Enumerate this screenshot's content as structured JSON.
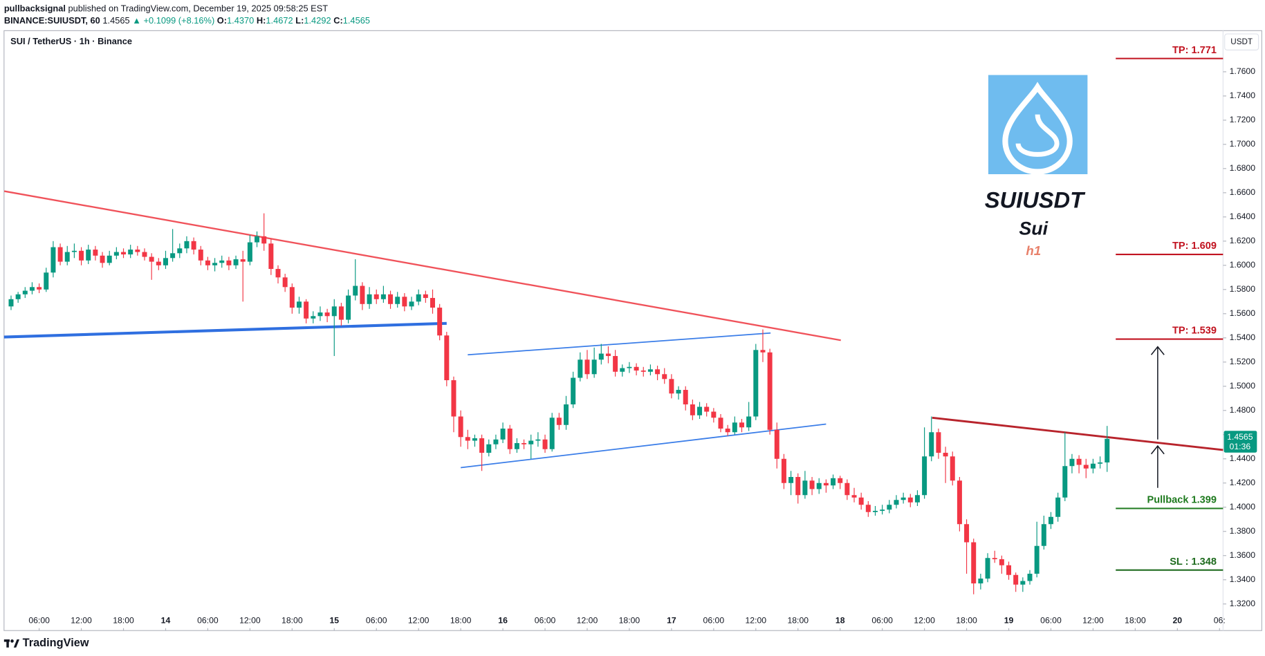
{
  "header": {
    "author": "pullbacksignal",
    "published": "published on TradingView.com, December 19, 2025 09:58:25 EST",
    "symbol": "BINANCE:SUIUSDT, 60",
    "last": "1.4565",
    "arrow": "▲",
    "change": "+0.1099 (+8.16%)",
    "o_label": "O:",
    "o": "1.4370",
    "h_label": "H:",
    "h": "1.4672",
    "l_label": "L:",
    "l": "1.4292",
    "c_label": "C:",
    "c": "1.4565"
  },
  "footer": {
    "brand": "TradingView"
  },
  "chart_data": {
    "type": "candlestick",
    "title": "SUI / TetherUS · 1h · Binance",
    "currency": "USDT",
    "up_color": "#089981",
    "down_color": "#f23645",
    "xlim": [
      1,
      174.5
    ],
    "ylim": [
      1.314,
      1.794
    ],
    "grid": false,
    "xticks": [
      {
        "value": 6,
        "label": "06:00"
      },
      {
        "value": 12,
        "label": "12:00"
      },
      {
        "value": 18,
        "label": "18:00"
      },
      {
        "value": 24,
        "label": "14"
      },
      {
        "value": 30,
        "label": "06:00"
      },
      {
        "value": 36,
        "label": "12:00"
      },
      {
        "value": 42,
        "label": "18:00"
      },
      {
        "value": 48,
        "label": "15"
      },
      {
        "value": 54,
        "label": "06:00"
      },
      {
        "value": 60,
        "label": "12:00"
      },
      {
        "value": 66,
        "label": "18:00"
      },
      {
        "value": 72,
        "label": "16"
      },
      {
        "value": 78,
        "label": "06:00"
      },
      {
        "value": 84,
        "label": "12:00"
      },
      {
        "value": 90,
        "label": "18:00"
      },
      {
        "value": 96,
        "label": "17"
      },
      {
        "value": 102,
        "label": "06:00"
      },
      {
        "value": 108,
        "label": "12:00"
      },
      {
        "value": 114,
        "label": "18:00"
      },
      {
        "value": 120,
        "label": "18"
      },
      {
        "value": 126,
        "label": "06:00"
      },
      {
        "value": 132,
        "label": "12:00"
      },
      {
        "value": 138,
        "label": "18:00"
      },
      {
        "value": 144,
        "label": "19"
      },
      {
        "value": 150,
        "label": "06:00"
      },
      {
        "value": 156,
        "label": "12:00"
      },
      {
        "value": 162,
        "label": "18:00"
      },
      {
        "value": 168,
        "label": "20"
      },
      {
        "value": 174,
        "label": "06:"
      }
    ],
    "yticks": [
      {
        "value": 1.32,
        "label": "1.3200"
      },
      {
        "value": 1.34,
        "label": "1.3400"
      },
      {
        "value": 1.36,
        "label": "1.3600"
      },
      {
        "value": 1.38,
        "label": "1.3800"
      },
      {
        "value": 1.4,
        "label": "1.4000"
      },
      {
        "value": 1.42,
        "label": "1.4200"
      },
      {
        "value": 1.44,
        "label": "1.4400"
      },
      {
        "value": 1.46,
        "label": "1.4600"
      },
      {
        "value": 1.48,
        "label": "1.4800"
      },
      {
        "value": 1.5,
        "label": "1.5000"
      },
      {
        "value": 1.52,
        "label": "1.5200"
      },
      {
        "value": 1.54,
        "label": "1.5400"
      },
      {
        "value": 1.56,
        "label": "1.5600"
      },
      {
        "value": 1.58,
        "label": "1.5800"
      },
      {
        "value": 1.6,
        "label": "1.6000"
      },
      {
        "value": 1.62,
        "label": "1.6200"
      },
      {
        "value": 1.64,
        "label": "1.6400"
      },
      {
        "value": 1.66,
        "label": "1.6600"
      },
      {
        "value": 1.68,
        "label": "1.6800"
      },
      {
        "value": 1.7,
        "label": "1.7000"
      },
      {
        "value": 1.72,
        "label": "1.7200"
      },
      {
        "value": 1.74,
        "label": "1.7400"
      },
      {
        "value": 1.76,
        "label": "1.7600"
      }
    ],
    "last_price": 1.4565,
    "countdown": "01:36",
    "x": [
      2,
      3,
      4,
      5,
      6,
      7,
      8,
      9,
      10,
      11,
      12,
      13,
      14,
      15,
      16,
      17,
      18,
      19,
      20,
      21,
      22,
      23,
      24,
      25,
      26,
      27,
      28,
      29,
      30,
      31,
      32,
      33,
      34,
      35,
      36,
      37,
      38,
      39,
      40,
      41,
      42,
      43,
      44,
      45,
      46,
      47,
      48,
      49,
      50,
      51,
      52,
      53,
      54,
      55,
      56,
      57,
      58,
      59,
      60,
      61,
      62,
      63,
      64,
      65,
      66,
      67,
      68,
      69,
      70,
      71,
      72,
      73,
      74,
      75,
      76,
      77,
      78,
      79,
      80,
      81,
      82,
      83,
      84,
      85,
      86,
      87,
      88,
      89,
      90,
      91,
      92,
      93,
      94,
      95,
      96,
      97,
      98,
      99,
      100,
      101,
      102,
      103,
      104,
      105,
      106,
      107,
      108,
      109,
      110,
      111,
      112,
      113,
      114,
      115,
      116,
      117,
      118,
      119,
      120,
      121,
      122,
      123,
      124,
      125,
      126,
      127,
      128,
      129,
      130,
      131,
      132,
      133,
      134,
      135,
      136,
      137,
      138,
      139,
      140,
      141,
      142,
      143,
      144,
      145,
      146,
      147,
      148,
      149,
      150,
      151,
      152,
      153,
      154,
      155,
      156,
      157,
      158
    ],
    "ohlc": [
      [
        1.566,
        1.575,
        1.563,
        1.572
      ],
      [
        1.572,
        1.578,
        1.569,
        1.576
      ],
      [
        1.576,
        1.582,
        1.573,
        1.579
      ],
      [
        1.579,
        1.586,
        1.576,
        1.582
      ],
      [
        1.582,
        1.585,
        1.577,
        1.58
      ],
      [
        1.58,
        1.598,
        1.578,
        1.594
      ],
      [
        1.594,
        1.62,
        1.59,
        1.615
      ],
      [
        1.615,
        1.618,
        1.6,
        1.603
      ],
      [
        1.603,
        1.616,
        1.6,
        1.611
      ],
      [
        1.611,
        1.618,
        1.606,
        1.612
      ],
      [
        1.612,
        1.615,
        1.6,
        1.604
      ],
      [
        1.604,
        1.617,
        1.601,
        1.613
      ],
      [
        1.613,
        1.616,
        1.604,
        1.608
      ],
      [
        1.608,
        1.611,
        1.598,
        1.602
      ],
      [
        1.602,
        1.612,
        1.6,
        1.608
      ],
      [
        1.608,
        1.615,
        1.605,
        1.611
      ],
      [
        1.611,
        1.614,
        1.606,
        1.609
      ],
      [
        1.609,
        1.617,
        1.606,
        1.613
      ],
      [
        1.613,
        1.616,
        1.608,
        1.611
      ],
      [
        1.611,
        1.614,
        1.604,
        1.607
      ],
      [
        1.607,
        1.61,
        1.588,
        1.603
      ],
      [
        1.603,
        1.606,
        1.596,
        1.6
      ],
      [
        1.6,
        1.612,
        1.597,
        1.606
      ],
      [
        1.606,
        1.63,
        1.603,
        1.61
      ],
      [
        1.61,
        1.618,
        1.606,
        1.614
      ],
      [
        1.614,
        1.624,
        1.61,
        1.62
      ],
      [
        1.62,
        1.623,
        1.609,
        1.613
      ],
      [
        1.613,
        1.616,
        1.6,
        1.604
      ],
      [
        1.604,
        1.607,
        1.596,
        1.6
      ],
      [
        1.6,
        1.606,
        1.595,
        1.602
      ],
      [
        1.602,
        1.608,
        1.598,
        1.604
      ],
      [
        1.604,
        1.607,
        1.596,
        1.6
      ],
      [
        1.6,
        1.608,
        1.597,
        1.605
      ],
      [
        1.605,
        1.612,
        1.57,
        1.603
      ],
      [
        1.603,
        1.625,
        1.6,
        1.619
      ],
      [
        1.619,
        1.628,
        1.615,
        1.624
      ],
      [
        1.624,
        1.643,
        1.612,
        1.618
      ],
      [
        1.618,
        1.622,
        1.592,
        1.597
      ],
      [
        1.597,
        1.6,
        1.585,
        1.59
      ],
      [
        1.59,
        1.593,
        1.578,
        1.582
      ],
      [
        1.582,
        1.585,
        1.56,
        1.565
      ],
      [
        1.565,
        1.574,
        1.56,
        1.57
      ],
      [
        1.57,
        1.572,
        1.552,
        1.556
      ],
      [
        1.556,
        1.562,
        1.552,
        1.558
      ],
      [
        1.558,
        1.566,
        1.554,
        1.561
      ],
      [
        1.561,
        1.564,
        1.553,
        1.558
      ],
      [
        1.558,
        1.572,
        1.525,
        1.566
      ],
      [
        1.566,
        1.569,
        1.55,
        1.555
      ],
      [
        1.555,
        1.58,
        1.552,
        1.575
      ],
      [
        1.575,
        1.605,
        1.571,
        1.583
      ],
      [
        1.583,
        1.586,
        1.563,
        1.568
      ],
      [
        1.568,
        1.582,
        1.564,
        1.576
      ],
      [
        1.576,
        1.58,
        1.568,
        1.572
      ],
      [
        1.572,
        1.583,
        1.569,
        1.576
      ],
      [
        1.576,
        1.579,
        1.564,
        1.568
      ],
      [
        1.568,
        1.578,
        1.565,
        1.574
      ],
      [
        1.574,
        1.577,
        1.562,
        1.566
      ],
      [
        1.566,
        1.574,
        1.563,
        1.57
      ],
      [
        1.57,
        1.58,
        1.567,
        1.576
      ],
      [
        1.576,
        1.579,
        1.569,
        1.573
      ],
      [
        1.573,
        1.58,
        1.56,
        1.565
      ],
      [
        1.565,
        1.568,
        1.538,
        1.542
      ],
      [
        1.542,
        1.545,
        1.5,
        1.505
      ],
      [
        1.505,
        1.508,
        1.462,
        1.475
      ],
      [
        1.475,
        1.48,
        1.45,
        1.458
      ],
      [
        1.458,
        1.464,
        1.448,
        1.455
      ],
      [
        1.455,
        1.46,
        1.45,
        1.457
      ],
      [
        1.457,
        1.46,
        1.43,
        1.445
      ],
      [
        1.445,
        1.456,
        1.442,
        1.452
      ],
      [
        1.452,
        1.46,
        1.448,
        1.456
      ],
      [
        1.456,
        1.47,
        1.453,
        1.465
      ],
      [
        1.465,
        1.468,
        1.444,
        1.448
      ],
      [
        1.448,
        1.457,
        1.445,
        1.453
      ],
      [
        1.453,
        1.456,
        1.448,
        1.452
      ],
      [
        1.452,
        1.46,
        1.44,
        1.455
      ],
      [
        1.455,
        1.462,
        1.45,
        1.456
      ],
      [
        1.456,
        1.46,
        1.445,
        1.448
      ],
      [
        1.448,
        1.478,
        1.446,
        1.474
      ],
      [
        1.474,
        1.478,
        1.464,
        1.468
      ],
      [
        1.468,
        1.492,
        1.464,
        1.485
      ],
      [
        1.485,
        1.512,
        1.482,
        1.507
      ],
      [
        1.507,
        1.528,
        1.504,
        1.522
      ],
      [
        1.522,
        1.53,
        1.506,
        1.51
      ],
      [
        1.51,
        1.532,
        1.507,
        1.522
      ],
      [
        1.522,
        1.535,
        1.518,
        1.527
      ],
      [
        1.527,
        1.533,
        1.519,
        1.525
      ],
      [
        1.525,
        1.53,
        1.508,
        1.512
      ],
      [
        1.512,
        1.518,
        1.508,
        1.515
      ],
      [
        1.515,
        1.52,
        1.511,
        1.516
      ],
      [
        1.516,
        1.519,
        1.509,
        1.513
      ],
      [
        1.513,
        1.516,
        1.508,
        1.512
      ],
      [
        1.512,
        1.518,
        1.509,
        1.514
      ],
      [
        1.514,
        1.517,
        1.505,
        1.51
      ],
      [
        1.51,
        1.515,
        1.502,
        1.506
      ],
      [
        1.506,
        1.51,
        1.49,
        1.494
      ],
      [
        1.494,
        1.5,
        1.489,
        1.497
      ],
      [
        1.497,
        1.5,
        1.48,
        1.485
      ],
      [
        1.485,
        1.489,
        1.472,
        1.476
      ],
      [
        1.476,
        1.487,
        1.473,
        1.483
      ],
      [
        1.483,
        1.486,
        1.475,
        1.479
      ],
      [
        1.479,
        1.482,
        1.47,
        1.474
      ],
      [
        1.474,
        1.477,
        1.462,
        1.465
      ],
      [
        1.465,
        1.468,
        1.459,
        1.462
      ],
      [
        1.462,
        1.475,
        1.46,
        1.47
      ],
      [
        1.47,
        1.473,
        1.462,
        1.466
      ],
      [
        1.466,
        1.487,
        1.463,
        1.475
      ],
      [
        1.475,
        1.535,
        1.472,
        1.53
      ],
      [
        1.53,
        1.547,
        1.52,
        1.528
      ],
      [
        1.528,
        1.531,
        1.46,
        1.464
      ],
      [
        1.464,
        1.47,
        1.432,
        1.44
      ],
      [
        1.44,
        1.444,
        1.415,
        1.42
      ],
      [
        1.42,
        1.43,
        1.41,
        1.425
      ],
      [
        1.425,
        1.428,
        1.403,
        1.41
      ],
      [
        1.41,
        1.43,
        1.407,
        1.422
      ],
      [
        1.422,
        1.425,
        1.41,
        1.415
      ],
      [
        1.415,
        1.424,
        1.411,
        1.42
      ],
      [
        1.42,
        1.423,
        1.412,
        1.418
      ],
      [
        1.418,
        1.427,
        1.415,
        1.424
      ],
      [
        1.424,
        1.426,
        1.415,
        1.42
      ],
      [
        1.42,
        1.423,
        1.406,
        1.41
      ],
      [
        1.41,
        1.416,
        1.404,
        1.408
      ],
      [
        1.408,
        1.412,
        1.398,
        1.402
      ],
      [
        1.402,
        1.405,
        1.392,
        1.396
      ],
      [
        1.396,
        1.401,
        1.393,
        1.397
      ],
      [
        1.397,
        1.402,
        1.394,
        1.398
      ],
      [
        1.398,
        1.406,
        1.395,
        1.402
      ],
      [
        1.402,
        1.41,
        1.399,
        1.406
      ],
      [
        1.406,
        1.412,
        1.403,
        1.408
      ],
      [
        1.408,
        1.411,
        1.4,
        1.404
      ],
      [
        1.404,
        1.414,
        1.401,
        1.41
      ],
      [
        1.41,
        1.466,
        1.407,
        1.442
      ],
      [
        1.442,
        1.475,
        1.438,
        1.462
      ],
      [
        1.462,
        1.465,
        1.44,
        1.445
      ],
      [
        1.445,
        1.45,
        1.42,
        1.442
      ],
      [
        1.442,
        1.446,
        1.418,
        1.422
      ],
      [
        1.422,
        1.425,
        1.38,
        1.386
      ],
      [
        1.386,
        1.39,
        1.345,
        1.371
      ],
      [
        1.371,
        1.374,
        1.328,
        1.337
      ],
      [
        1.337,
        1.345,
        1.332,
        1.341
      ],
      [
        1.341,
        1.362,
        1.338,
        1.358
      ],
      [
        1.358,
        1.364,
        1.354,
        1.357
      ],
      [
        1.357,
        1.36,
        1.345,
        1.352
      ],
      [
        1.352,
        1.355,
        1.34,
        1.344
      ],
      [
        1.344,
        1.346,
        1.33,
        1.336
      ],
      [
        1.336,
        1.342,
        1.33,
        1.339
      ],
      [
        1.339,
        1.348,
        1.336,
        1.345
      ],
      [
        1.345,
        1.388,
        1.342,
        1.368
      ],
      [
        1.368,
        1.393,
        1.365,
        1.386
      ],
      [
        1.386,
        1.396,
        1.382,
        1.392
      ],
      [
        1.392,
        1.412,
        1.388,
        1.408
      ],
      [
        1.408,
        1.462,
        1.405,
        1.434
      ],
      [
        1.434,
        1.444,
        1.428,
        1.44
      ],
      [
        1.44,
        1.443,
        1.428,
        1.435
      ],
      [
        1.435,
        1.44,
        1.424,
        1.432
      ],
      [
        1.432,
        1.44,
        1.428,
        1.436
      ],
      [
        1.436,
        1.442,
        1.432,
        1.437
      ],
      [
        1.437,
        1.4672,
        1.4292,
        1.4565
      ]
    ],
    "trendlines": [
      {
        "x": [
          1.03,
          120.1
        ],
        "y": [
          1.6613,
          1.538
        ],
        "color": "#f0525a",
        "width": 2
      },
      {
        "x": [
          1.0,
          64.0
        ],
        "y": [
          1.5407,
          1.552
        ],
        "color": "#2f6fe0",
        "width": 3.5
      },
      {
        "x": [
          67.0,
          110.1
        ],
        "y": [
          1.526,
          1.544
        ],
        "color": "#3a7de8",
        "width": 1.5
      },
      {
        "x": [
          66.0,
          118.0
        ],
        "y": [
          1.4327,
          1.4687
        ],
        "color": "#3a7de8",
        "width": 1.5
      },
      {
        "x": [
          133.1,
          174.5
        ],
        "y": [
          1.474,
          1.4473
        ],
        "color": "#b8242c",
        "width": 2.5
      }
    ],
    "levels": [
      {
        "label": "TP: 1.771",
        "value": 1.771,
        "color": "#c1121f"
      },
      {
        "label": "TP: 1.609",
        "value": 1.609,
        "color": "#c1121f"
      },
      {
        "label": "TP: 1.539",
        "value": 1.539,
        "color": "#c1121f"
      },
      {
        "label": "Pullback 1.399",
        "value": 1.399,
        "color": "#1e7a1e"
      },
      {
        "label": "SL : 1.348",
        "value": 1.348,
        "color": "#1e6b1e"
      }
    ],
    "annotation": {
      "symbol": "SUIUSDT",
      "name": "Sui",
      "interval": "h1"
    }
  }
}
